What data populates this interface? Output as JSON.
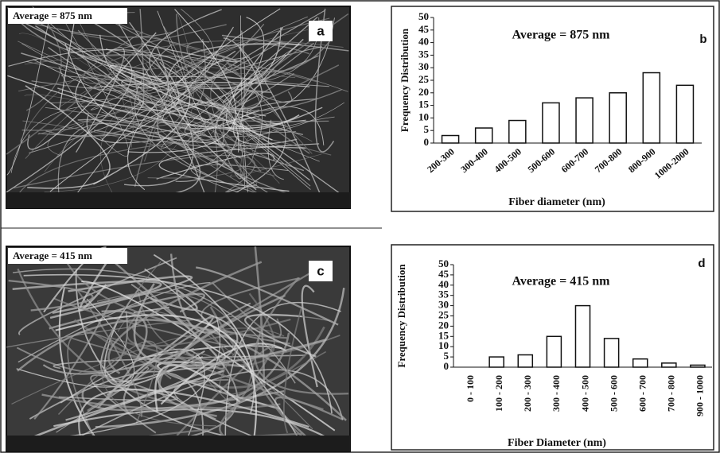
{
  "images": [
    {
      "caption": "Average = 875 nm",
      "label": "a"
    },
    {
      "caption": "Average = 415 nm",
      "label": "c"
    }
  ],
  "chart_data": [
    {
      "type": "bar",
      "title": "Average = 875 nm",
      "panel_label": "b",
      "y_label": "Frequency Distribution",
      "x_label": "Fiber diameter (nm)",
      "categories": [
        "200-300",
        "300-400",
        "400-500",
        "500-600",
        "600-700",
        "700-800",
        "800-900",
        "1000-2000"
      ],
      "values": [
        3,
        6,
        9,
        16,
        18,
        20,
        28,
        23
      ],
      "color": "#ffffff",
      "edge_color": "#111111",
      "ylim": [
        0,
        50
      ],
      "yticks": [
        0,
        5,
        10,
        15,
        20,
        25,
        30,
        35,
        40,
        45,
        50
      ]
    },
    {
      "type": "bar",
      "title": "Average = 415 nm",
      "panel_label": "d",
      "y_label": "Frequency Distribution",
      "x_label": "Fiber Diameter (nm)",
      "categories": [
        "0 - 100",
        "100 - 200",
        "200 - 300",
        "300 - 400",
        "400 - 500",
        "500 - 600",
        "600 - 700",
        "700 - 800",
        "900 - 1000"
      ],
      "values": [
        0,
        5,
        6,
        15,
        30,
        14,
        4,
        2,
        1
      ],
      "color": "#ffffff",
      "edge_color": "#111111",
      "ylim": [
        0,
        50
      ],
      "yticks": [
        0,
        5,
        10,
        15,
        20,
        25,
        30,
        35,
        40,
        45,
        50
      ]
    }
  ]
}
